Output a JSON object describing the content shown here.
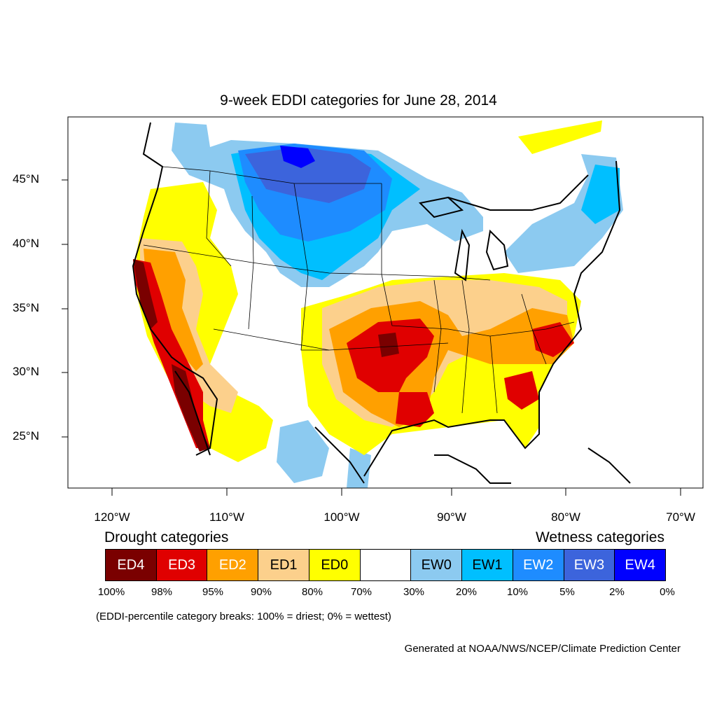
{
  "title": "9-week EDDI categories for June 28, 2014",
  "lat_labels": [
    "45°N",
    "40°N",
    "35°N",
    "30°N",
    "25°N"
  ],
  "lon_labels": [
    "120°W",
    "110°W",
    "100°W",
    "90°W",
    "80°W",
    "70°W"
  ],
  "legend": {
    "drought_heading": "Drought categories",
    "wetness_heading": "Wetness categories",
    "categories": [
      {
        "label": "ED4",
        "color": "#7a0000",
        "text_color": "#ffffff"
      },
      {
        "label": "ED3",
        "color": "#e00000",
        "text_color": "#ffffff"
      },
      {
        "label": "ED2",
        "color": "#ffa000",
        "text_color": "#ffffff"
      },
      {
        "label": "ED1",
        "color": "#fcd08c",
        "text_color": "#000000"
      },
      {
        "label": "ED0",
        "color": "#ffff00",
        "text_color": "#000000"
      },
      {
        "label": "",
        "color": "#ffffff",
        "text_color": "#000000"
      },
      {
        "label": "EW0",
        "color": "#8ccaf0",
        "text_color": "#000000"
      },
      {
        "label": "EW1",
        "color": "#00bfff",
        "text_color": "#000000"
      },
      {
        "label": "EW2",
        "color": "#1e8cff",
        "text_color": "#ffffff"
      },
      {
        "label": "EW3",
        "color": "#3c64dc",
        "text_color": "#ffffff"
      },
      {
        "label": "EW4",
        "color": "#0000ff",
        "text_color": "#ffffff"
      }
    ],
    "ticks": [
      "100%",
      "98%",
      "95%",
      "90%",
      "80%",
      "70%",
      "30%",
      "20%",
      "10%",
      "5%",
      "2%",
      "0%"
    ]
  },
  "breaks_note": "(EDDI-percentile category breaks: 100% = driest; 0% = wettest)",
  "credit": "Generated at NOAA/NWS/NCEP/Climate Prediction Center"
}
